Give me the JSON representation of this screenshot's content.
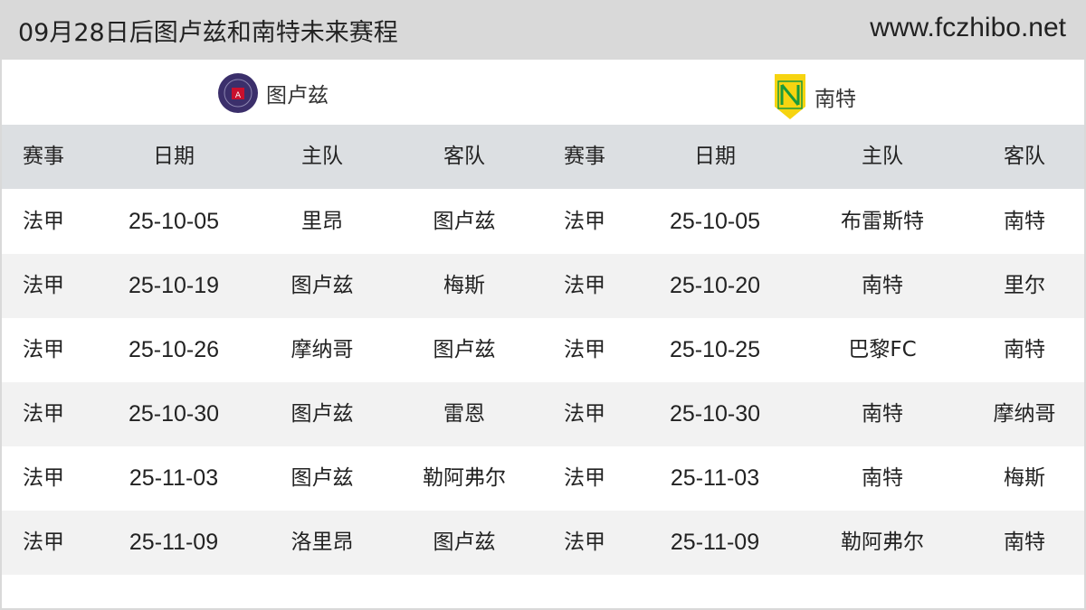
{
  "header": {
    "title": "09月28日后图卢兹和南特未来赛程",
    "site": "www.fczhibo.net"
  },
  "teams": [
    {
      "name": "图卢兹",
      "logo": "toulouse-crest-icon",
      "color": "#3b2f6b"
    },
    {
      "name": "南特",
      "logo": "nantes-crest-icon",
      "color": "#f6d410"
    }
  ],
  "columns": [
    "赛事",
    "日期",
    "主队",
    "客队",
    "赛事",
    "日期",
    "主队",
    "客队"
  ],
  "rows": [
    [
      "法甲",
      "25-10-05",
      "里昂",
      "图卢兹",
      "法甲",
      "25-10-05",
      "布雷斯特",
      "南特"
    ],
    [
      "法甲",
      "25-10-19",
      "图卢兹",
      "梅斯",
      "法甲",
      "25-10-20",
      "南特",
      "里尔"
    ],
    [
      "法甲",
      "25-10-26",
      "摩纳哥",
      "图卢兹",
      "法甲",
      "25-10-25",
      "巴黎FC",
      "南特"
    ],
    [
      "法甲",
      "25-10-30",
      "图卢兹",
      "雷恩",
      "法甲",
      "25-10-30",
      "南特",
      "摩纳哥"
    ],
    [
      "法甲",
      "25-11-03",
      "图卢兹",
      "勒阿弗尔",
      "法甲",
      "25-11-03",
      "南特",
      "梅斯"
    ],
    [
      "法甲",
      "25-11-09",
      "洛里昂",
      "图卢兹",
      "法甲",
      "25-11-09",
      "勒阿弗尔",
      "南特"
    ]
  ]
}
